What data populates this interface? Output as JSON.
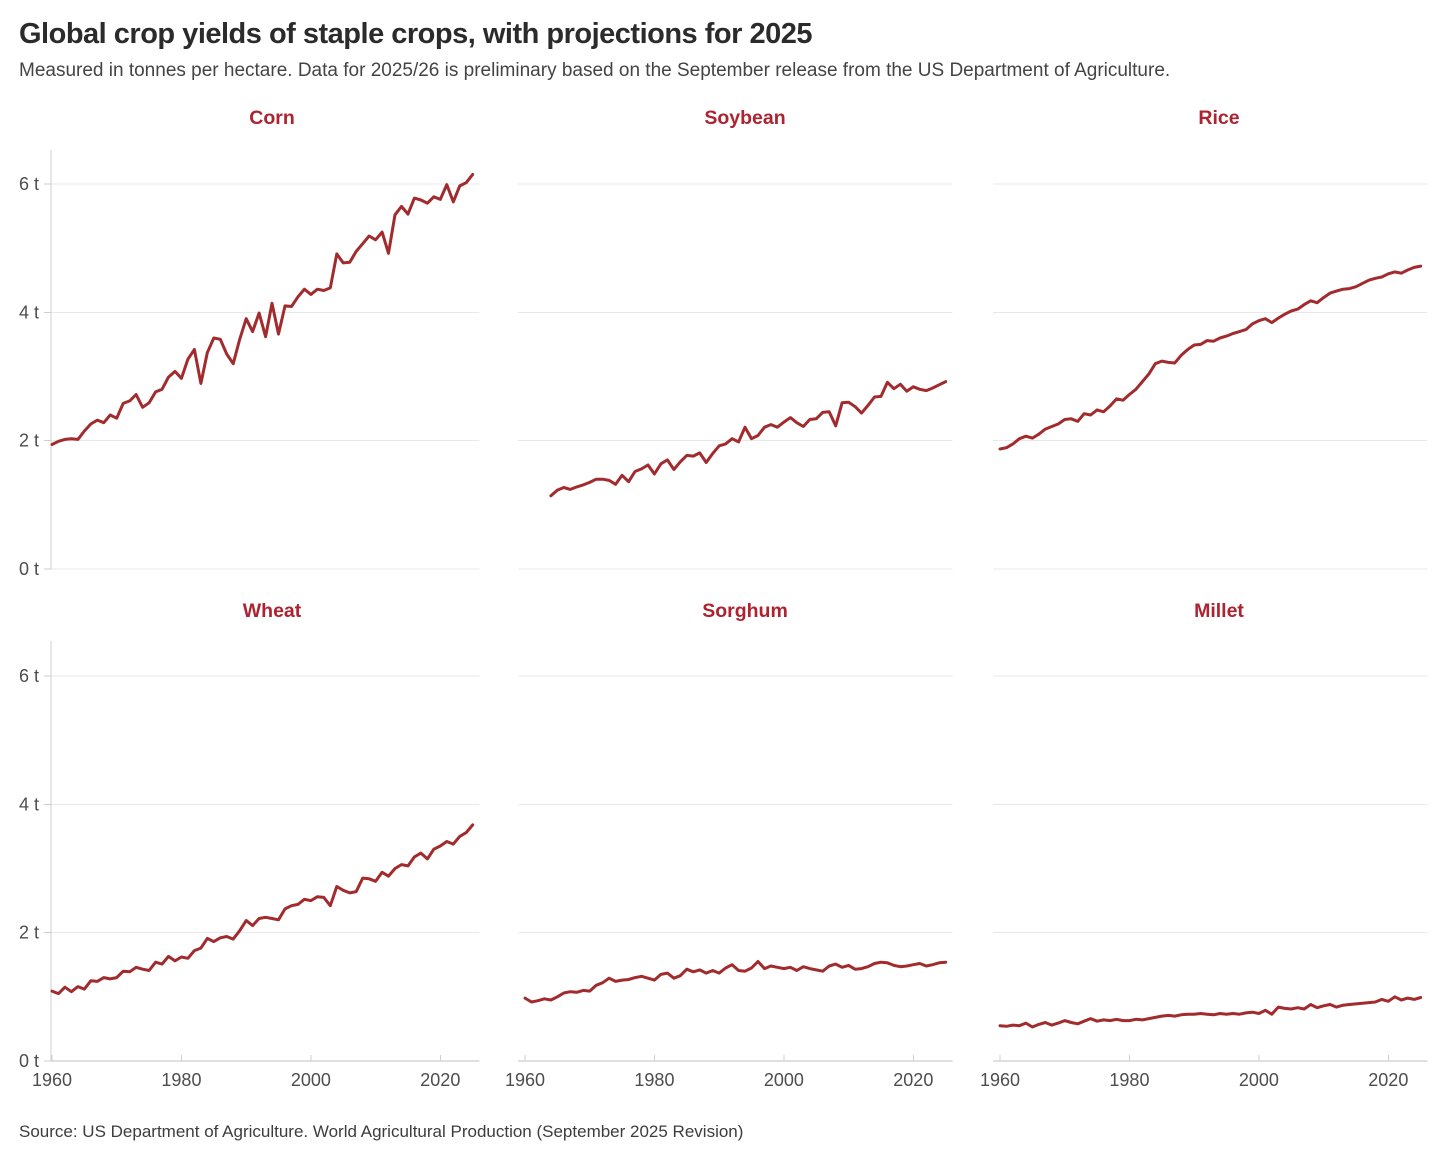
{
  "header": {
    "title": "Global crop yields of staple crops, with projections for 2025",
    "subtitle": "Measured in tonnes per hectare. Data for 2025/26 is preliminary based on the September release from the US Department of Agriculture."
  },
  "footer": {
    "source": "Source: US Department of Agriculture. World Agricultural Production (September 2025 Revision)"
  },
  "chart_data": {
    "type": "line",
    "layout": "small-multiples 2 rows x 3 columns",
    "unit": "tonnes per hectare",
    "line_color": "#a12b2d",
    "panel_title_color": "#ad2330",
    "grid": true,
    "legend": false,
    "xlim": [
      1960,
      2025
    ],
    "ylim": [
      0,
      6.55
    ],
    "x_ticks": [
      1960,
      1980,
      2000,
      2020
    ],
    "y_ticks": [
      0,
      2,
      4,
      6
    ],
    "y_tick_labels": [
      "0 t",
      "2 t",
      "4 t",
      "6 t"
    ],
    "panels": [
      {
        "title": "Corn",
        "start_year": 1960,
        "end_year": 2025,
        "values": [
          1.94,
          1.99,
          2.02,
          2.03,
          2.02,
          2.15,
          2.26,
          2.32,
          2.28,
          2.4,
          2.35,
          2.58,
          2.62,
          2.72,
          2.52,
          2.59,
          2.76,
          2.8,
          2.99,
          3.08,
          2.97,
          3.27,
          3.42,
          2.89,
          3.37,
          3.6,
          3.58,
          3.35,
          3.2,
          3.58,
          3.9,
          3.7,
          3.99,
          3.62,
          4.14,
          3.66,
          4.1,
          4.09,
          4.24,
          4.36,
          4.28,
          4.36,
          4.34,
          4.38,
          4.91,
          4.77,
          4.78,
          4.95,
          5.07,
          5.19,
          5.13,
          5.25,
          4.92,
          5.52,
          5.65,
          5.53,
          5.78,
          5.75,
          5.7,
          5.8,
          5.76,
          5.99,
          5.72,
          5.97,
          6.02,
          6.15
        ]
      },
      {
        "title": "Soybean",
        "start_year": 1964,
        "end_year": 2025,
        "values": [
          1.14,
          1.23,
          1.27,
          1.24,
          1.28,
          1.31,
          1.35,
          1.4,
          1.4,
          1.38,
          1.32,
          1.46,
          1.36,
          1.52,
          1.56,
          1.62,
          1.48,
          1.64,
          1.7,
          1.55,
          1.67,
          1.77,
          1.76,
          1.81,
          1.66,
          1.8,
          1.92,
          1.95,
          2.03,
          1.98,
          2.21,
          2.03,
          2.08,
          2.21,
          2.25,
          2.21,
          2.29,
          2.36,
          2.28,
          2.22,
          2.33,
          2.34,
          2.44,
          2.45,
          2.23,
          2.59,
          2.6,
          2.53,
          2.43,
          2.55,
          2.68,
          2.69,
          2.91,
          2.81,
          2.88,
          2.77,
          2.84,
          2.8,
          2.78,
          2.82,
          2.87,
          2.92
        ]
      },
      {
        "title": "Rice",
        "start_year": 1960,
        "end_year": 2025,
        "values": [
          1.87,
          1.89,
          1.95,
          2.03,
          2.07,
          2.04,
          2.1,
          2.18,
          2.22,
          2.26,
          2.33,
          2.34,
          2.3,
          2.42,
          2.4,
          2.48,
          2.45,
          2.54,
          2.65,
          2.63,
          2.72,
          2.8,
          2.92,
          3.04,
          3.2,
          3.24,
          3.22,
          3.21,
          3.33,
          3.42,
          3.49,
          3.5,
          3.56,
          3.55,
          3.6,
          3.63,
          3.67,
          3.7,
          3.73,
          3.82,
          3.87,
          3.9,
          3.84,
          3.91,
          3.97,
          4.02,
          4.05,
          4.12,
          4.18,
          4.15,
          4.23,
          4.3,
          4.33,
          4.36,
          4.37,
          4.4,
          4.45,
          4.5,
          4.53,
          4.55,
          4.6,
          4.63,
          4.61,
          4.66,
          4.7,
          4.72
        ]
      },
      {
        "title": "Wheat",
        "start_year": 1960,
        "end_year": 2025,
        "values": [
          1.09,
          1.05,
          1.15,
          1.08,
          1.16,
          1.12,
          1.25,
          1.24,
          1.3,
          1.28,
          1.3,
          1.4,
          1.39,
          1.46,
          1.43,
          1.41,
          1.54,
          1.51,
          1.63,
          1.56,
          1.62,
          1.6,
          1.72,
          1.76,
          1.91,
          1.86,
          1.92,
          1.94,
          1.9,
          2.03,
          2.19,
          2.11,
          2.22,
          2.24,
          2.22,
          2.2,
          2.37,
          2.42,
          2.44,
          2.52,
          2.5,
          2.56,
          2.55,
          2.42,
          2.72,
          2.66,
          2.62,
          2.64,
          2.85,
          2.84,
          2.8,
          2.94,
          2.88,
          3.0,
          3.06,
          3.04,
          3.18,
          3.24,
          3.15,
          3.3,
          3.35,
          3.42,
          3.38,
          3.5,
          3.56,
          3.68
        ]
      },
      {
        "title": "Sorghum",
        "start_year": 1960,
        "end_year": 2025,
        "values": [
          0.98,
          0.92,
          0.94,
          0.97,
          0.95,
          1.0,
          1.06,
          1.08,
          1.07,
          1.1,
          1.09,
          1.18,
          1.22,
          1.29,
          1.24,
          1.26,
          1.27,
          1.3,
          1.32,
          1.29,
          1.26,
          1.35,
          1.37,
          1.29,
          1.33,
          1.43,
          1.39,
          1.42,
          1.37,
          1.41,
          1.37,
          1.45,
          1.5,
          1.41,
          1.4,
          1.45,
          1.55,
          1.44,
          1.48,
          1.46,
          1.44,
          1.46,
          1.41,
          1.47,
          1.44,
          1.42,
          1.4,
          1.48,
          1.51,
          1.46,
          1.49,
          1.43,
          1.44,
          1.47,
          1.52,
          1.54,
          1.53,
          1.49,
          1.47,
          1.48,
          1.5,
          1.52,
          1.48,
          1.5,
          1.53,
          1.54
        ]
      },
      {
        "title": "Millet",
        "start_year": 1960,
        "end_year": 2025,
        "values": [
          0.55,
          0.54,
          0.56,
          0.55,
          0.59,
          0.53,
          0.57,
          0.6,
          0.56,
          0.59,
          0.63,
          0.6,
          0.58,
          0.62,
          0.66,
          0.62,
          0.64,
          0.63,
          0.65,
          0.63,
          0.63,
          0.65,
          0.64,
          0.66,
          0.68,
          0.7,
          0.71,
          0.7,
          0.72,
          0.73,
          0.73,
          0.74,
          0.73,
          0.72,
          0.74,
          0.73,
          0.74,
          0.73,
          0.75,
          0.76,
          0.74,
          0.79,
          0.73,
          0.84,
          0.82,
          0.81,
          0.83,
          0.81,
          0.88,
          0.83,
          0.86,
          0.88,
          0.84,
          0.87,
          0.88,
          0.89,
          0.9,
          0.91,
          0.92,
          0.96,
          0.93,
          1.0,
          0.95,
          0.98,
          0.96,
          0.99
        ]
      }
    ]
  }
}
